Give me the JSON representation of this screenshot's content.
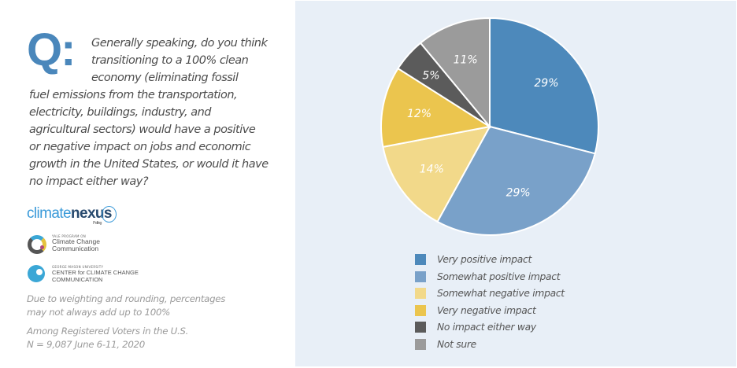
{
  "question": {
    "marker": "Q:",
    "first_lines": "Generally speaking, do you think transitioning to a 100% clean economy (eliminating fossil",
    "lines": [
      "Generally speaking, do you think",
      "transitioning to a 100% clean",
      "economy (eliminating fossil",
      "fuel emissions from the transportation,",
      "electricity, buildings, industry, and",
      "agricultural sectors) would have a positive",
      "or negative impact on jobs and economic",
      "growth in the United States, or would it have",
      "no impact either way?"
    ]
  },
  "logos": {
    "climatenexus": {
      "part1": "climate",
      "part2": "nexus",
      "sub": "Polling"
    },
    "yale": {
      "line1": "YALE PROGRAM ON",
      "line2": "Climate Change",
      "line3": "Communication"
    },
    "gmu": {
      "line1": "GEORGE MASON UNIVERSITY",
      "line2": "CENTER for CLIMATE CHANGE",
      "line3": "COMMUNICATION"
    }
  },
  "notes": {
    "weighting_line1": "Due to weighting and rounding, percentages",
    "weighting_line2": "may not always add up to 100%",
    "sample_line1": "Among Registered Voters in the U.S.",
    "sample_line2": "N = 9,087 June 6-11, 2020"
  },
  "chart_data": {
    "type": "pie",
    "title": "",
    "start_angle": "12 o'clock, clockwise",
    "categories": [
      "Very positive impact",
      "Somewhat positive impact",
      "Somewhat negative impact",
      "Very negative impact",
      "No impact either way",
      "Not sure"
    ],
    "values": [
      29,
      29,
      14,
      12,
      5,
      11
    ],
    "labels": [
      "29%",
      "29%",
      "14%",
      "12%",
      "5%",
      "11%"
    ],
    "colors": [
      "#4d89bb",
      "#79a1c9",
      "#f2d98a",
      "#ebc54e",
      "#5b5b5b",
      "#9b9b9b"
    ],
    "unit": "%",
    "legend_position": "bottom"
  }
}
